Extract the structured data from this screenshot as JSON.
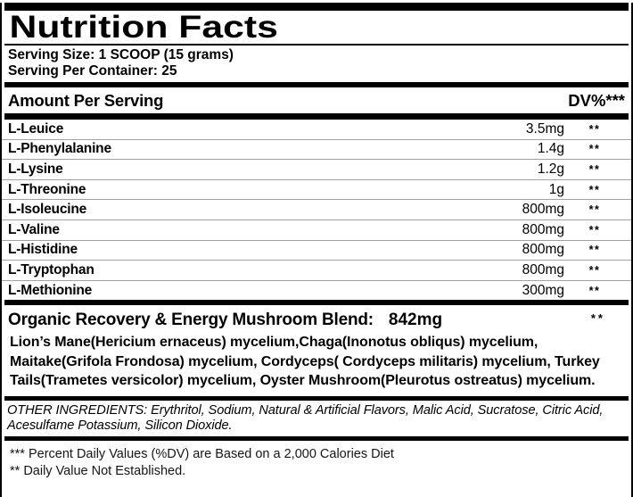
{
  "label": {
    "title": "Nutrition Facts",
    "serving_size": "Serving Size: 1 SCOOP (15 grams)",
    "servings_per_container": "Serving Per Container: 25",
    "amount_per_serving_label": "Amount Per Serving",
    "dv_header": "DV%***",
    "rows": [
      {
        "name": "L-Leuice",
        "amount": "3.5mg",
        "dv": "**"
      },
      {
        "name": "L-Phenylalanine",
        "amount": "1.4g",
        "dv": "**"
      },
      {
        "name": "L-Lysine",
        "amount": "1.2g",
        "dv": "**"
      },
      {
        "name": "L-Threonine",
        "amount": "1g",
        "dv": "**"
      },
      {
        "name": "L-Isoleucine",
        "amount": "800mg",
        "dv": "**"
      },
      {
        "name": "L-Valine",
        "amount": "800mg",
        "dv": "**"
      },
      {
        "name": "L-Histidine",
        "amount": "800mg",
        "dv": "**"
      },
      {
        "name": "L-Tryptophan",
        "amount": "800mg",
        "dv": "**"
      },
      {
        "name": "L-Methionine",
        "amount": "300mg",
        "dv": "**"
      }
    ],
    "blend": {
      "heading": "Organic Recovery & Energy Mushroom Blend:",
      "amount": "842mg",
      "dv": "**",
      "description": "Lion’s Mane(Hericium ernaceus) mycelium,Chaga(Inonotus obliqus) mycelium, Maitake(Grifola Frondosa) mycelium, Cordyceps( Cordyceps militaris) mycelium, Turkey Tails(Trametes versicolor) mycelium, Oyster Mushroom(Pleurotus ostreatus) mycelium."
    },
    "other_ingredients": "OTHER INGREDIENTS: Erythritol, Sodium, Natural & Artificial Flavors, Malic Acid, Sucratose, Citric Acid, Acesulfame Potassium, Silicon Dioxide.",
    "footnotes": [
      "*** Percent Daily Values  (%DV) are Based on a 2,000 Calories Diet",
      "** Daily Value Not Established."
    ],
    "colors": {
      "text": "#000000",
      "background": "#ffffff",
      "separator": "#a3a3a3"
    }
  }
}
